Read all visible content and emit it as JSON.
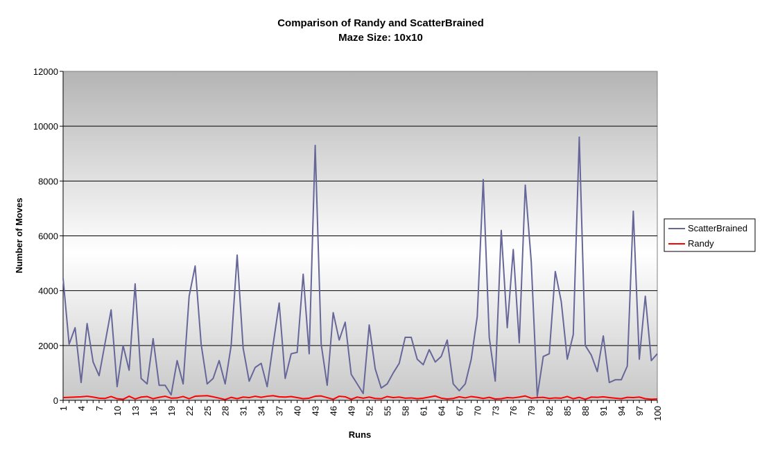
{
  "chart_data": {
    "type": "line",
    "title": "Comparison of Randy and ScatterBrained",
    "subtitle": "Maze Size: 10x10",
    "xlabel": "Runs",
    "ylabel": "Number of Moves",
    "ylim": [
      0,
      12000
    ],
    "y_ticks": [
      0,
      2000,
      4000,
      6000,
      8000,
      10000,
      12000
    ],
    "x_tick_labels": [
      "1",
      "4",
      "7",
      "10",
      "13",
      "16",
      "19",
      "22",
      "25",
      "28",
      "31",
      "34",
      "37",
      "40",
      "43",
      "46",
      "49",
      "52",
      "55",
      "58",
      "61",
      "64",
      "67",
      "70",
      "73",
      "76",
      "79",
      "82",
      "85",
      "88",
      "91",
      "94",
      "97",
      "100"
    ],
    "x": [
      1,
      2,
      3,
      4,
      5,
      6,
      7,
      8,
      9,
      10,
      11,
      12,
      13,
      14,
      15,
      16,
      17,
      18,
      19,
      20,
      21,
      22,
      23,
      24,
      25,
      26,
      27,
      28,
      29,
      30,
      31,
      32,
      33,
      34,
      35,
      36,
      37,
      38,
      39,
      40,
      41,
      42,
      43,
      44,
      45,
      46,
      47,
      48,
      49,
      50,
      51,
      52,
      53,
      54,
      55,
      56,
      57,
      58,
      59,
      60,
      61,
      62,
      63,
      64,
      65,
      66,
      67,
      68,
      69,
      70,
      71,
      72,
      73,
      74,
      75,
      76,
      77,
      78,
      79,
      80,
      81,
      82,
      83,
      84,
      85,
      86,
      87,
      88,
      89,
      90,
      91,
      92,
      93,
      94,
      95,
      96,
      97,
      98,
      99,
      100
    ],
    "grid": "horizontal",
    "legend_position": "right",
    "series": [
      {
        "name": "ScatterBrained",
        "color": "#666699",
        "values": [
          4450,
          2050,
          2650,
          650,
          2800,
          1400,
          900,
          2100,
          3300,
          500,
          2000,
          1100,
          4250,
          800,
          600,
          2250,
          550,
          550,
          200,
          1450,
          600,
          3800,
          4900,
          2050,
          600,
          800,
          1450,
          600,
          2000,
          5300,
          1900,
          700,
          1200,
          1350,
          500,
          2050,
          3550,
          800,
          1700,
          1750,
          4600,
          1700,
          9300,
          2050,
          550,
          3200,
          2200,
          2850,
          950,
          600,
          250,
          2750,
          1150,
          450,
          600,
          1000,
          1350,
          2300,
          2300,
          1500,
          1300,
          1850,
          1400,
          1600,
          2200,
          600,
          350,
          600,
          1500,
          3050,
          8050,
          2300,
          700,
          6200,
          2650,
          5500,
          2100,
          7850,
          5050,
          150,
          1600,
          1700,
          4700,
          3600,
          1500,
          2400,
          9600,
          2000,
          1650,
          1050,
          2350,
          650,
          750,
          750,
          1250,
          6900,
          1500,
          3800,
          1450,
          1700
        ]
      },
      {
        "name": "Randy",
        "color": "#ff0000",
        "values": [
          100,
          110,
          120,
          130,
          150,
          120,
          80,
          70,
          140,
          60,
          40,
          150,
          50,
          120,
          140,
          60,
          110,
          150,
          80,
          90,
          140,
          60,
          150,
          160,
          170,
          130,
          80,
          30,
          110,
          60,
          120,
          100,
          150,
          110,
          150,
          170,
          130,
          120,
          140,
          100,
          60,
          80,
          150,
          160,
          100,
          40,
          150,
          130,
          40,
          120,
          80,
          120,
          70,
          60,
          140,
          100,
          120,
          80,
          90,
          60,
          80,
          120,
          160,
          80,
          50,
          70,
          130,
          90,
          140,
          110,
          70,
          110,
          50,
          60,
          100,
          90,
          120,
          160,
          80,
          100,
          110,
          70,
          90,
          80,
          140,
          60,
          110,
          40,
          120,
          110,
          130,
          100,
          80,
          60,
          110,
          100,
          120,
          60,
          40,
          50
        ]
      }
    ]
  }
}
